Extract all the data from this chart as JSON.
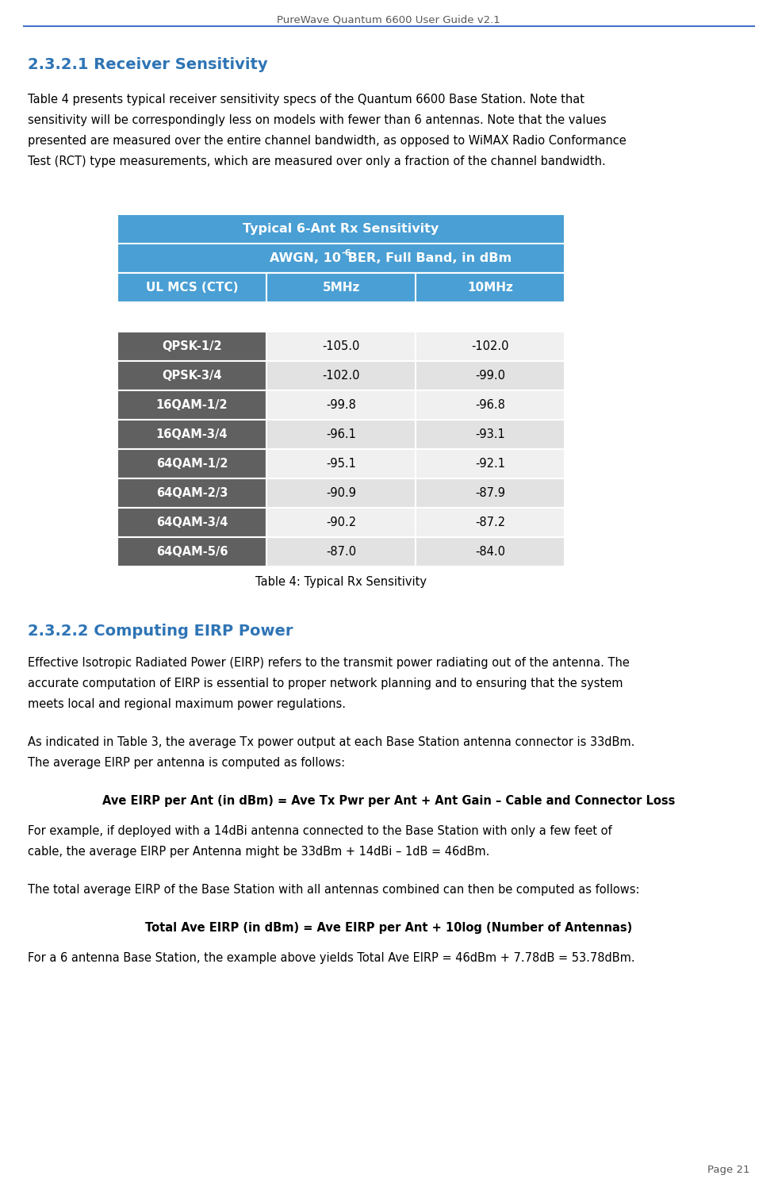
{
  "header_title": "PureWave Quantum 6600 User Guide v2.1",
  "header_line_color": "#4472C4",
  "section1_title": "2.3.2.1 Receiver Sensitivity",
  "section1_color": "#2E74B5",
  "section1_text_lines": [
    "Table 4 presents typical receiver sensitivity specs of the Quantum 6600 Base Station. Note that",
    "sensitivity will be correspondingly less on models with fewer than 6 antennas. Note that the values",
    "presented are measured over the entire channel bandwidth, as opposed to WiMAX Radio Conformance",
    "Test (RCT) type measurements, which are measured over only a fraction of the channel bandwidth."
  ],
  "table_title1": "Typical 6-Ant Rx Sensitivity",
  "table_title2_pre": "AWGN, 10",
  "table_title2_sup": "-6",
  "table_title2_post": " BER, Full Band, in dBm",
  "table_header": [
    "UL MCS (CTC)",
    "5MHz",
    "10MHz"
  ],
  "table_rows": [
    [
      "QPSK-1/2",
      "-105.0",
      "-102.0"
    ],
    [
      "QPSK-3/4",
      "-102.0",
      "-99.0"
    ],
    [
      "16QAM-1/2",
      "-99.8",
      "-96.8"
    ],
    [
      "16QAM-3/4",
      "-96.1",
      "-93.1"
    ],
    [
      "64QAM-1/2",
      "-95.1",
      "-92.1"
    ],
    [
      "64QAM-2/3",
      "-90.9",
      "-87.9"
    ],
    [
      "64QAM-3/4",
      "-90.2",
      "-87.2"
    ],
    [
      "64QAM-5/6",
      "-87.0",
      "-84.0"
    ]
  ],
  "table_header_bg": "#4A9FD4",
  "table_header_bg2": "#4A9FD4",
  "table_col_header_bg": "#4A9FD4",
  "table_header_text": "#FFFFFF",
  "table_row_bg_dark": "#606060",
  "table_row_bg_even": "#F0F0F0",
  "table_row_bg_odd": "#E2E2E2",
  "table_row_text_dark": "#FFFFFF",
  "table_row_text_light": "#000000",
  "table_caption": "Table 4: Typical Rx Sensitivity",
  "section2_title": "2.3.2.2 Computing EIRP Power",
  "section2_color": "#2E74B5",
  "section2_para1_lines": [
    "Effective Isotropic Radiated Power (EIRP) refers to the transmit power radiating out of the antenna. The",
    "accurate computation of EIRP is essential to proper network planning and to ensuring that the system",
    "meets local and regional maximum power regulations."
  ],
  "section2_para2_lines": [
    "As indicated in Table 3, the average Tx power output at each Base Station antenna connector is 33dBm.",
    "The average EIRP per antenna is computed as follows:"
  ],
  "section2_formula1": "Ave EIRP per Ant (in dBm) = Ave Tx Pwr per Ant + Ant Gain – Cable and Connector Loss",
  "section2_para3_lines": [
    "For example, if deployed with a 14dBi antenna connected to the Base Station with only a few feet of",
    "cable, the average EIRP per Antenna might be 33dBm + 14dBi – 1dB = 46dBm."
  ],
  "section2_para4": "The total average EIRP of the Base Station with all antennas combined can then be computed as follows:",
  "section2_formula2": "Total Ave EIRP (in dBm) = Ave EIRP per Ant + 10log (Number of Antennas)",
  "section2_para5": "For a 6 antenna Base Station, the example above yields Total Ave EIRP = 46dBm + 7.78dB = 53.78dBm.",
  "page_number": "Page 21",
  "bg_color": "#FFFFFF",
  "text_color": "#000000",
  "header_text_color": "#595959"
}
